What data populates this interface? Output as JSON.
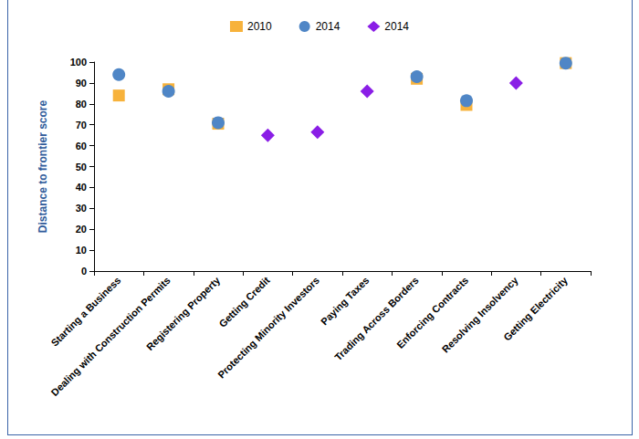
{
  "chart_data": {
    "type": "scatter",
    "y_label": "Distance to frontier score",
    "categories": [
      "Starting a Business",
      "Dealing with Construction Permits",
      "Registering Property",
      "Getting Credit",
      "Protecting Minority Investors",
      "Paying Taxes",
      "Trading Across Borders",
      "Enforcing Contracts",
      "Resolving Insolvency",
      "Getting Electricity"
    ],
    "series": [
      {
        "name": "2010",
        "color": "#f7b23b",
        "marker": "square",
        "values": [
          84,
          87,
          70.5,
          null,
          null,
          null,
          92,
          79.5,
          null,
          99.5
        ]
      },
      {
        "name": "2014",
        "color": "#4f86c6",
        "marker": "circle",
        "values": [
          94,
          86,
          71,
          null,
          null,
          null,
          93,
          81.5,
          null,
          99.5
        ]
      },
      {
        "name": "2014",
        "color": "#8a1ee6",
        "marker": "diamond",
        "values": [
          null,
          null,
          null,
          65,
          66.5,
          86,
          null,
          null,
          90,
          null
        ]
      }
    ],
    "ylim": [
      0,
      100
    ],
    "yticks": [
      0,
      10,
      20,
      30,
      40,
      50,
      60,
      70,
      80,
      90,
      100
    ],
    "grid": false,
    "legend": "top"
  }
}
